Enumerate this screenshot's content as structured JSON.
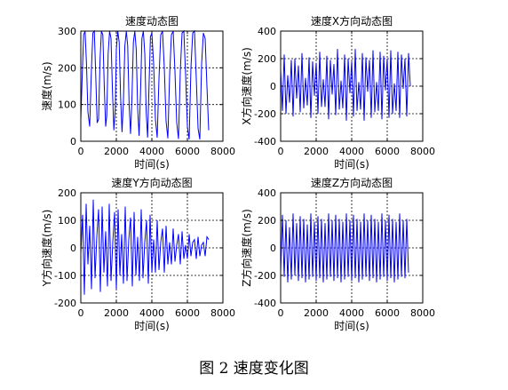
{
  "caption": "图 2  速度变化图",
  "line_color": "#0000ff",
  "chart_data": [
    {
      "type": "line",
      "title": "速度动态图",
      "xlabel": "时间(s)",
      "ylabel": "速度(m/s)",
      "xlim": [
        0,
        8000
      ],
      "ylim": [
        0,
        300
      ],
      "xticks": [
        0,
        2000,
        4000,
        6000,
        8000
      ],
      "yticks": [
        0,
        100,
        200,
        300
      ],
      "grid": "dashed",
      "series": [
        {
          "x": [
            0,
            80,
            160,
            240,
            320,
            400,
            500,
            600,
            680,
            760,
            840,
            920,
            1000,
            1080,
            1160,
            1240,
            1320,
            1400,
            1460,
            1540,
            1620,
            1700,
            1780,
            1860,
            1940,
            2000,
            2080,
            2160,
            2240,
            2320,
            2400,
            2480,
            2560,
            2640,
            2720,
            2800,
            2880,
            2960,
            3040,
            3120,
            3200,
            3280,
            3360,
            3440,
            3520,
            3600,
            3680,
            3760,
            3840,
            3920,
            4000,
            4100,
            4200,
            4300,
            4400,
            4500,
            4600,
            4700,
            4800,
            4900,
            5000,
            5100,
            5200,
            5300,
            5400,
            5500,
            5600,
            5700,
            5800,
            5900,
            6000,
            6100,
            6200,
            6300,
            6400,
            6500,
            6600,
            6700,
            6800,
            6900,
            7000,
            7100,
            7200
          ],
          "y": [
            60,
            180,
            290,
            300,
            210,
            80,
            40,
            200,
            295,
            300,
            180,
            50,
            60,
            220,
            300,
            290,
            150,
            40,
            70,
            240,
            300,
            280,
            140,
            30,
            90,
            250,
            300,
            270,
            120,
            25,
            110,
            260,
            300,
            260,
            100,
            20,
            120,
            270,
            300,
            250,
            90,
            15,
            130,
            280,
            300,
            240,
            80,
            10,
            150,
            285,
            295,
            210,
            60,
            10,
            170,
            290,
            300,
            200,
            55,
            8,
            180,
            290,
            300,
            190,
            50,
            6,
            190,
            295,
            300,
            180,
            40,
            5,
            200,
            295,
            300,
            170,
            35,
            5,
            210,
            295,
            280,
            150,
            30
          ]
        }
      ]
    },
    {
      "type": "line",
      "title": "速度X方向动态图",
      "xlabel": "时间(s)",
      "ylabel": "X方向速度(m/s)",
      "xlim": [
        0,
        8000
      ],
      "ylim": [
        -400,
        400
      ],
      "xticks": [
        0,
        2000,
        4000,
        6000,
        8000
      ],
      "yticks": [
        -400,
        -200,
        0,
        200,
        400
      ],
      "grid": "dashed",
      "series": [
        {
          "x": [
            0,
            100,
            200,
            300,
            400,
            500,
            600,
            700,
            800,
            900,
            1000,
            1100,
            1200,
            1300,
            1400,
            1500,
            1600,
            1700,
            1800,
            1900,
            2000,
            2100,
            2200,
            2300,
            2400,
            2500,
            2600,
            2700,
            2800,
            2900,
            3000,
            3100,
            3200,
            3300,
            3400,
            3500,
            3600,
            3700,
            3800,
            3900,
            4000,
            4100,
            4200,
            4300,
            4400,
            4500,
            4600,
            4700,
            4800,
            4900,
            5000,
            5100,
            5200,
            5300,
            5400,
            5500,
            5600,
            5700,
            5800,
            5900,
            6000,
            6100,
            6200,
            6300,
            6400,
            6500,
            6600,
            6700,
            6800,
            6900,
            7000,
            7100,
            7200,
            7300
          ],
          "y": [
            120,
            -180,
            230,
            -200,
            80,
            -120,
            190,
            -220,
            200,
            -90,
            150,
            -190,
            240,
            -160,
            60,
            -140,
            210,
            -230,
            180,
            -70,
            170,
            -200,
            250,
            -150,
            50,
            -150,
            220,
            -240,
            190,
            -60,
            160,
            -210,
            270,
            -170,
            40,
            -160,
            230,
            -250,
            200,
            -50,
            180,
            -220,
            270,
            -180,
            30,
            -170,
            240,
            -250,
            210,
            -40,
            190,
            -230,
            260,
            -190,
            30,
            -180,
            250,
            -240,
            220,
            -30,
            200,
            -230,
            260,
            -200,
            20,
            -180,
            250,
            -230,
            230,
            -20,
            200,
            -220,
            240,
            0
          ]
        }
      ]
    },
    {
      "type": "line",
      "title": "速度Y方向动态图",
      "xlabel": "时间(s)",
      "ylabel": "Y方向速度(m/s)",
      "xlim": [
        0,
        8000
      ],
      "ylim": [
        -200,
        200
      ],
      "xticks": [
        0,
        2000,
        4000,
        6000,
        8000
      ],
      "yticks": [
        -200,
        -100,
        0,
        100,
        200
      ],
      "grid": "dashed",
      "series": [
        {
          "x": [
            0,
            100,
            200,
            300,
            400,
            500,
            600,
            700,
            800,
            900,
            1000,
            1100,
            1200,
            1300,
            1400,
            1500,
            1600,
            1700,
            1800,
            1900,
            2000,
            2100,
            2200,
            2300,
            2400,
            2500,
            2600,
            2700,
            2800,
            2900,
            3000,
            3100,
            3200,
            3300,
            3400,
            3500,
            3600,
            3700,
            3800,
            3900,
            4000,
            4100,
            4200,
            4300,
            4400,
            4500,
            4600,
            4700,
            4800,
            4900,
            5000,
            5100,
            5200,
            5300,
            5400,
            5500,
            5600,
            5700,
            5800,
            5900,
            6000,
            6100,
            6200,
            6300,
            6400,
            6500,
            6600,
            6700,
            6800,
            6900,
            7000,
            7100,
            7200
          ],
          "y": [
            -20,
            120,
            -170,
            160,
            -60,
            80,
            -150,
            175,
            -110,
            40,
            140,
            -160,
            150,
            -90,
            60,
            -140,
            160,
            -120,
            20,
            130,
            -150,
            140,
            -100,
            50,
            -130,
            150,
            -120,
            30,
            110,
            -140,
            130,
            -100,
            40,
            -120,
            140,
            -110,
            20,
            100,
            -130,
            120,
            -90,
            30,
            -90,
            100,
            -80,
            20,
            70,
            -90,
            80,
            -60,
            20,
            -60,
            70,
            -50,
            10,
            50,
            -60,
            60,
            -40,
            10,
            -40,
            50,
            -30,
            20,
            30,
            -40,
            40,
            -30,
            10,
            20,
            -30,
            40,
            30
          ]
        }
      ]
    },
    {
      "type": "line",
      "title": "速度Z方向动态图",
      "xlabel": "时间(s)",
      "ylabel": "Z方向速度(m/s)",
      "xlim": [
        0,
        8000
      ],
      "ylim": [
        -400,
        400
      ],
      "xticks": [
        0,
        2000,
        4000,
        6000,
        8000
      ],
      "yticks": [
        -400,
        -200,
        0,
        200,
        400
      ],
      "grid": "dashed",
      "series": [
        {
          "x": [
            0,
            100,
            200,
            300,
            400,
            500,
            600,
            700,
            800,
            900,
            1000,
            1100,
            1200,
            1300,
            1400,
            1500,
            1600,
            1700,
            1800,
            1900,
            2000,
            2100,
            2200,
            2300,
            2400,
            2500,
            2600,
            2700,
            2800,
            2900,
            3000,
            3100,
            3200,
            3300,
            3400,
            3500,
            3600,
            3700,
            3800,
            3900,
            4000,
            4100,
            4200,
            4300,
            4400,
            4500,
            4600,
            4700,
            4800,
            4900,
            5000,
            5100,
            5200,
            5300,
            5400,
            5500,
            5600,
            5700,
            5800,
            5900,
            6000,
            6100,
            6200,
            6300,
            6400,
            6500,
            6600,
            6700,
            6800,
            6900,
            7000,
            7100,
            7200
          ],
          "y": [
            -180,
            240,
            -210,
            200,
            -250,
            150,
            -230,
            250,
            -200,
            180,
            -240,
            230,
            -220,
            210,
            -250,
            170,
            -230,
            250,
            -210,
            190,
            -240,
            230,
            -220,
            210,
            -250,
            180,
            -230,
            250,
            -210,
            200,
            -240,
            240,
            -220,
            210,
            -250,
            190,
            -230,
            250,
            -210,
            200,
            -240,
            240,
            -220,
            210,
            -250,
            190,
            -230,
            250,
            -210,
            200,
            -240,
            240,
            -220,
            210,
            -250,
            190,
            -230,
            250,
            -210,
            200,
            -240,
            240,
            -220,
            210,
            -250,
            190,
            -230,
            250,
            -210,
            200,
            -220,
            210,
            -180
          ]
        }
      ]
    }
  ]
}
